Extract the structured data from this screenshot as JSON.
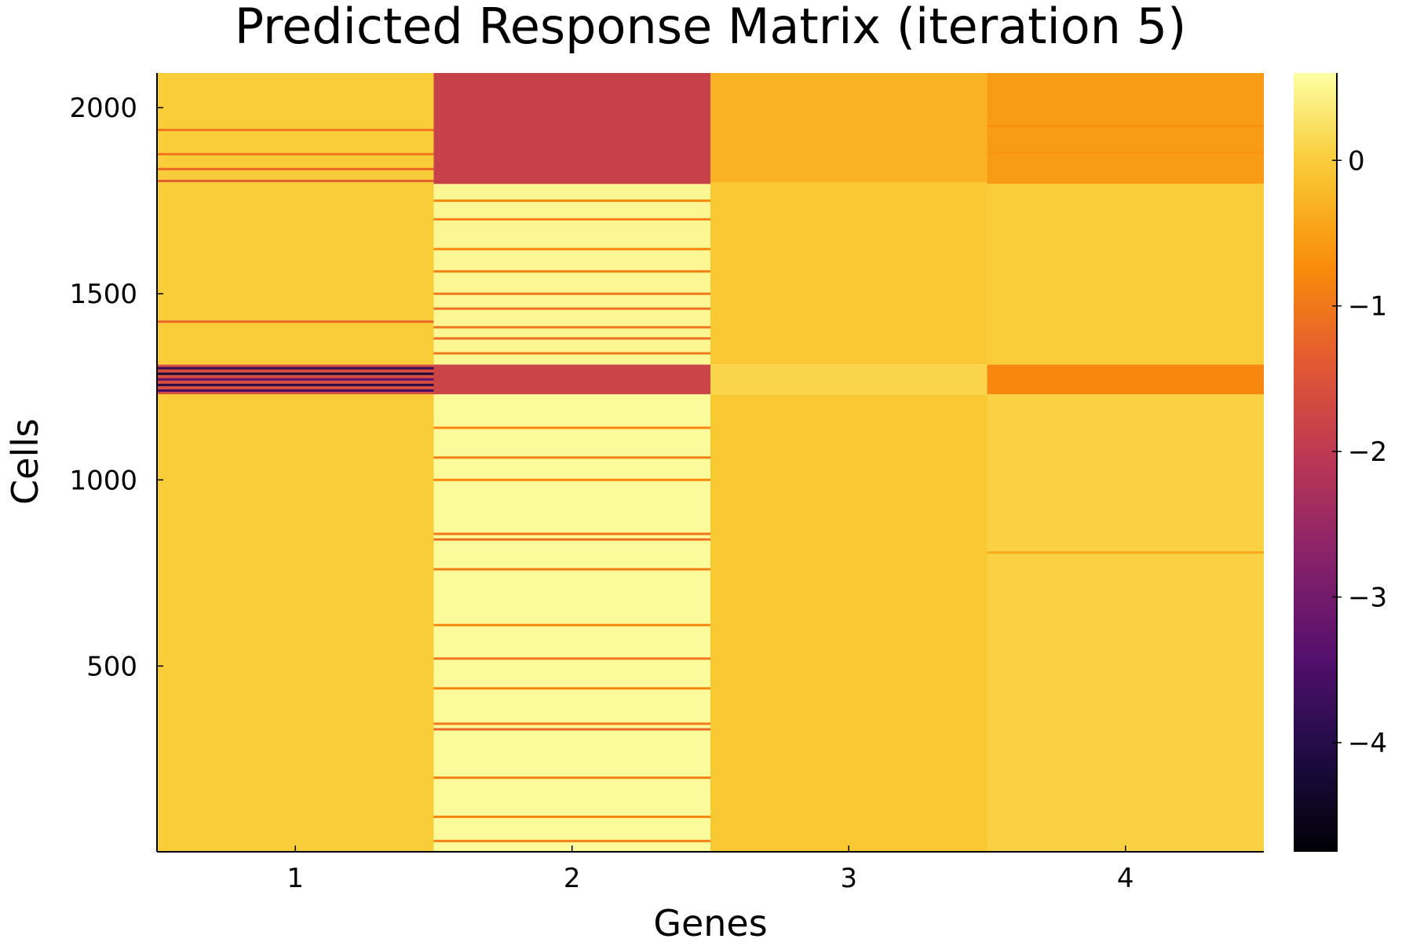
{
  "chart_data": {
    "type": "heatmap",
    "title": "Predicted Response Matrix (iteration 5)",
    "xlabel": "Genes",
    "ylabel": "Cells",
    "x_categories": [
      "1",
      "2",
      "3",
      "4"
    ],
    "xlim": [
      0.5,
      4.5
    ],
    "ylim": [
      1,
      2093
    ],
    "y_ticks": [
      500,
      1000,
      1500,
      2000
    ],
    "colorbar": {
      "colormap": "inferno",
      "range": [
        -4.75,
        0.6
      ],
      "ticks": [
        0,
        -1,
        -2,
        -3,
        -4
      ],
      "tick_labels": [
        "0",
        "−1",
        "−2",
        "−3",
        "−4"
      ]
    },
    "columns": [
      {
        "gene": "1",
        "segments": [
          {
            "y": [
              1,
              1230
            ],
            "value": 0.0
          },
          {
            "y": [
              1230,
              1310
            ],
            "value": -1.6
          },
          {
            "y": [
              1310,
              1800
            ],
            "value": 0.0
          },
          {
            "y": [
              1800,
              2093
            ],
            "value": 0.0
          }
        ],
        "streaks": [
          {
            "y": 1425,
            "value": -1.2
          },
          {
            "y": 1240,
            "value": -3.6
          },
          {
            "y": 1255,
            "value": -4.0
          },
          {
            "y": 1270,
            "value": -3.3
          },
          {
            "y": 1285,
            "value": -4.2
          },
          {
            "y": 1300,
            "value": -3.8
          },
          {
            "y": 1803,
            "value": -1.3
          },
          {
            "y": 1835,
            "value": -1.2
          },
          {
            "y": 1875,
            "value": -1.0
          },
          {
            "y": 1940,
            "value": -1.0
          }
        ]
      },
      {
        "gene": "2",
        "segments": [
          {
            "y": [
              1,
              1230
            ],
            "value": 0.55
          },
          {
            "y": [
              1230,
              1310
            ],
            "value": -1.8
          },
          {
            "y": [
              1310,
              1795
            ],
            "value": 0.5
          },
          {
            "y": [
              1795,
              2093
            ],
            "value": -1.85
          }
        ],
        "streaks": [
          {
            "y": 30,
            "value": -0.9
          },
          {
            "y": 95,
            "value": -0.8
          },
          {
            "y": 200,
            "value": -0.9
          },
          {
            "y": 330,
            "value": -1.2
          },
          {
            "y": 345,
            "value": -1.0
          },
          {
            "y": 440,
            "value": -0.8
          },
          {
            "y": 520,
            "value": -1.0
          },
          {
            "y": 610,
            "value": -0.8
          },
          {
            "y": 760,
            "value": -0.9
          },
          {
            "y": 840,
            "value": -1.1
          },
          {
            "y": 855,
            "value": -1.0
          },
          {
            "y": 1000,
            "value": -0.8
          },
          {
            "y": 1060,
            "value": -0.9
          },
          {
            "y": 1140,
            "value": -0.8
          },
          {
            "y": 1340,
            "value": -1.0
          },
          {
            "y": 1380,
            "value": -1.1
          },
          {
            "y": 1410,
            "value": -1.0
          },
          {
            "y": 1460,
            "value": -1.1
          },
          {
            "y": 1500,
            "value": -1.0
          },
          {
            "y": 1560,
            "value": -0.9
          },
          {
            "y": 1620,
            "value": -0.8
          },
          {
            "y": 1700,
            "value": -0.9
          },
          {
            "y": 1750,
            "value": -0.8
          }
        ]
      },
      {
        "gene": "3",
        "segments": [
          {
            "y": [
              1,
              1230
            ],
            "value": -0.05
          },
          {
            "y": [
              1230,
              1310
            ],
            "value": 0.1
          },
          {
            "y": [
              1310,
              1800
            ],
            "value": -0.05
          },
          {
            "y": [
              1800,
              2093
            ],
            "value": -0.3
          }
        ],
        "streaks": []
      },
      {
        "gene": "4",
        "segments": [
          {
            "y": [
              1,
              1230
            ],
            "value": 0.05
          },
          {
            "y": [
              1230,
              1310
            ],
            "value": -0.8
          },
          {
            "y": [
              1310,
              1795
            ],
            "value": 0.0
          },
          {
            "y": [
              1795,
              2093
            ],
            "value": -0.55
          }
        ],
        "streaks": [
          {
            "y": 805,
            "value": -0.4
          },
          {
            "y": 1950,
            "value": -0.7
          },
          {
            "y": 1880,
            "value": -0.65
          }
        ]
      }
    ]
  }
}
